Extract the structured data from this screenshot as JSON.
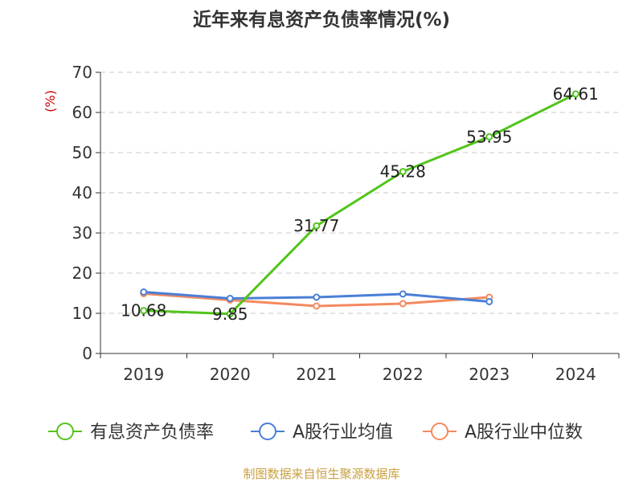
{
  "chart_data": {
    "type": "line",
    "title": "近年来有息资产负债率情况(%)",
    "ylabel": "(%)",
    "xlabel": "",
    "categories": [
      "2019",
      "2020",
      "2021",
      "2022",
      "2023",
      "2024"
    ],
    "yticks": [
      "0",
      "10",
      "20",
      "30",
      "40",
      "50",
      "60",
      "70"
    ],
    "ylim": [
      0,
      70
    ],
    "grid": true,
    "legend_position": "bottom",
    "series": [
      {
        "name": "有息资产负债率",
        "color": "#52c41a",
        "values": [
          10.68,
          9.85,
          31.77,
          45.28,
          53.95,
          64.61
        ],
        "labels": [
          "10.68",
          "9.85",
          "31.77",
          "45.28",
          "53.95",
          "64.61"
        ]
      },
      {
        "name": "A股行业均值",
        "color": "#4a7fd6",
        "values": [
          15.3,
          13.7,
          14.0,
          14.8,
          12.9,
          null
        ]
      },
      {
        "name": "A股行业中位数",
        "color": "#f4895f",
        "values": [
          14.9,
          13.3,
          11.8,
          12.4,
          14.0,
          null
        ]
      }
    ]
  },
  "source": "制图数据来自恒生聚源数据库"
}
